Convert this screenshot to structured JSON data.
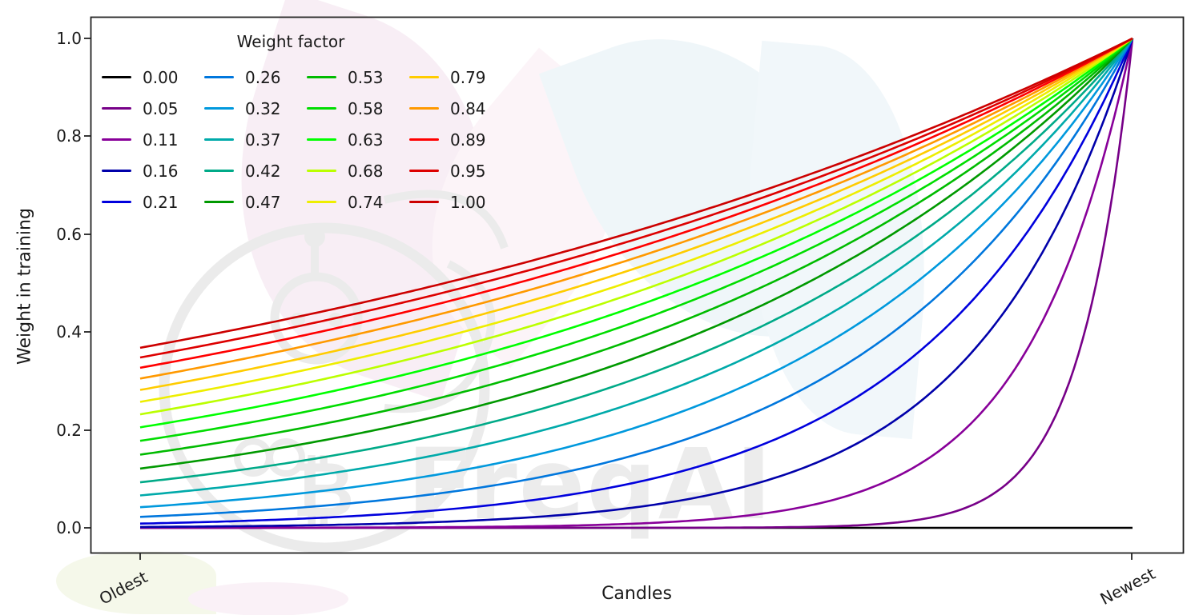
{
  "figure": {
    "background": "#ffffff"
  },
  "watermark": {
    "text": "FreqAI",
    "coin_glyph": "₿",
    "logo": "freqtrade-bot-logo",
    "text_color": "#ececec",
    "logo_color": "#ebebeb",
    "leaf_pink": "#f8eef5",
    "leaf_pink_light": "#fcf4f8",
    "leaf_blue": "#eff6f9",
    "leaf_blue_light": "#f1f7fa",
    "leaf_green": "#f5f8ea"
  },
  "chart_data": {
    "type": "line",
    "title": "",
    "xlabel": "Candles",
    "ylabel": "Weight in training",
    "x_tick_labels": [
      "Oldest",
      "Newest"
    ],
    "y_tick_labels": [
      "0.0",
      "0.2",
      "0.4",
      "0.6",
      "0.8",
      "1.0"
    ],
    "y_ticks": [
      0.0,
      0.2,
      0.4,
      0.6,
      0.8,
      1.0
    ],
    "ylim": [
      -0.05,
      1.05
    ],
    "grid": false,
    "legend": {
      "title": "Weight factor",
      "columns": 4,
      "position": "upper left",
      "frame": false
    },
    "formula": "weight(x) = exp(-(1 - x) / factor), x = 0 at oldest candle, x = 1 at newest; factor 0 gives a flat zero-weight line",
    "x_samples": [
      0,
      0.1,
      0.2,
      0.3,
      0.4,
      0.5,
      0.6,
      0.7,
      0.8,
      0.9,
      1.0
    ],
    "series": [
      {
        "label": "0.00",
        "factor": 0.0,
        "color": "#000000",
        "values": [
          0,
          0,
          0,
          0,
          0,
          0,
          0,
          0,
          0,
          0,
          0
        ]
      },
      {
        "label": "0.05",
        "factor": 0.0526,
        "color": "#770088",
        "values": [
          0,
          0,
          0,
          0,
          0,
          0,
          0.001,
          0.003,
          0.022,
          0.15,
          1
        ]
      },
      {
        "label": "0.11",
        "factor": 0.1053,
        "color": "#880099",
        "values": [
          0,
          0,
          0.001,
          0.001,
          0.003,
          0.009,
          0.022,
          0.058,
          0.15,
          0.387,
          1
        ]
      },
      {
        "label": "0.16",
        "factor": 0.1579,
        "color": "#0000aa",
        "values": [
          0.002,
          0.003,
          0.006,
          0.012,
          0.022,
          0.042,
          0.079,
          0.15,
          0.282,
          0.531,
          1
        ]
      },
      {
        "label": "0.21",
        "factor": 0.2105,
        "color": "#0000dd",
        "values": [
          0.009,
          0.014,
          0.022,
          0.036,
          0.058,
          0.093,
          0.15,
          0.241,
          0.387,
          0.622,
          1
        ]
      },
      {
        "label": "0.26",
        "factor": 0.2632,
        "color": "#0077dd",
        "values": [
          0.022,
          0.033,
          0.048,
          0.07,
          0.102,
          0.15,
          0.219,
          0.321,
          0.468,
          0.684,
          1
        ]
      },
      {
        "label": "0.32",
        "factor": 0.3158,
        "color": "#0099dd",
        "values": [
          0.042,
          0.058,
          0.079,
          0.108,
          0.15,
          0.205,
          0.282,
          0.387,
          0.531,
          0.729,
          1
        ]
      },
      {
        "label": "0.37",
        "factor": 0.3684,
        "color": "#00aaaa",
        "values": [
          0.066,
          0.087,
          0.114,
          0.15,
          0.197,
          0.257,
          0.337,
          0.443,
          0.581,
          0.762,
          1
        ]
      },
      {
        "label": "0.42",
        "factor": 0.4211,
        "color": "#00aa88",
        "values": [
          0.093,
          0.118,
          0.15,
          0.19,
          0.241,
          0.305,
          0.387,
          0.49,
          0.622,
          0.789,
          1
        ]
      },
      {
        "label": "0.47",
        "factor": 0.4737,
        "color": "#009900",
        "values": [
          0.121,
          0.15,
          0.185,
          0.228,
          0.282,
          0.348,
          0.429,
          0.531,
          0.656,
          0.81,
          1
        ]
      },
      {
        "label": "0.53",
        "factor": 0.5263,
        "color": "#00bb00",
        "values": [
          0.15,
          0.181,
          0.219,
          0.264,
          0.32,
          0.387,
          0.468,
          0.566,
          0.684,
          0.827,
          1
        ]
      },
      {
        "label": "0.58",
        "factor": 0.5789,
        "color": "#00dd00",
        "values": [
          0.178,
          0.211,
          0.251,
          0.298,
          0.355,
          0.422,
          0.501,
          0.596,
          0.708,
          0.841,
          1
        ]
      },
      {
        "label": "0.63",
        "factor": 0.6316,
        "color": "#00ff00",
        "values": [
          0.205,
          0.24,
          0.282,
          0.331,
          0.388,
          0.455,
          0.531,
          0.622,
          0.729,
          0.854,
          1
        ]
      },
      {
        "label": "0.68",
        "factor": 0.6842,
        "color": "#bbff00",
        "values": [
          0.232,
          0.268,
          0.31,
          0.358,
          0.417,
          0.481,
          0.557,
          0.645,
          0.747,
          0.864,
          1
        ]
      },
      {
        "label": "0.74",
        "factor": 0.7368,
        "color": "#eeee00",
        "values": [
          0.257,
          0.295,
          0.337,
          0.387,
          0.443,
          0.507,
          0.581,
          0.666,
          0.762,
          0.873,
          1
        ]
      },
      {
        "label": "0.79",
        "factor": 0.7895,
        "color": "#ffcc00",
        "values": [
          0.282,
          0.32,
          0.363,
          0.412,
          0.468,
          0.531,
          0.602,
          0.684,
          0.776,
          0.881,
          1
        ]
      },
      {
        "label": "0.84",
        "factor": 0.8421,
        "color": "#ff9900",
        "values": [
          0.305,
          0.344,
          0.387,
          0.436,
          0.491,
          0.552,
          0.622,
          0.701,
          0.789,
          0.888,
          1
        ]
      },
      {
        "label": "0.89",
        "factor": 0.8947,
        "color": "#ff0000",
        "values": [
          0.327,
          0.366,
          0.41,
          0.458,
          0.512,
          0.572,
          0.639,
          0.715,
          0.799,
          0.894,
          1
        ]
      },
      {
        "label": "0.95",
        "factor": 0.9474,
        "color": "#dd0000",
        "values": [
          0.348,
          0.387,
          0.43,
          0.477,
          0.531,
          0.59,
          0.655,
          0.728,
          0.81,
          0.9,
          1
        ]
      },
      {
        "label": "1.00",
        "factor": 1.0,
        "color": "#cc0000",
        "values": [
          0.368,
          0.407,
          0.449,
          0.497,
          0.549,
          0.607,
          0.67,
          0.741,
          0.819,
          0.905,
          1
        ]
      }
    ]
  }
}
